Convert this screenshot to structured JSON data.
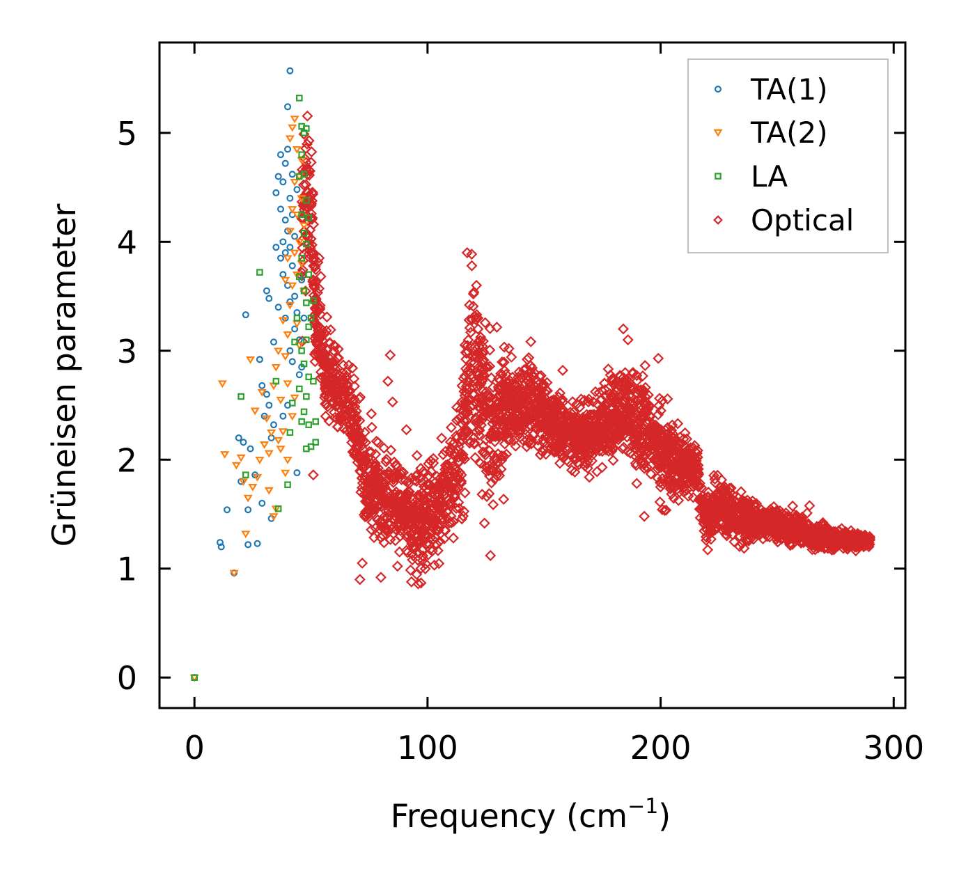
{
  "chart_data": {
    "type": "scatter",
    "title": "",
    "xlabel": "Frequency (cm",
    "xlabel_sup": "−1",
    "xlabel_close": ")",
    "ylabel": "Grüneisen parameter",
    "xlim": [
      -15,
      305
    ],
    "ylim": [
      -0.28,
      5.83
    ],
    "xticks": [
      0,
      100,
      200,
      300
    ],
    "yticks": [
      0,
      1,
      2,
      3,
      4,
      5
    ],
    "grid": false,
    "legend_position": "top-right",
    "series": [
      {
        "name": "TA(1)",
        "marker": "circle",
        "color": "#1f77b4",
        "points": [
          [
            0,
            0
          ],
          [
            11,
            1.24
          ],
          [
            11.5,
            1.2
          ],
          [
            14,
            1.54
          ],
          [
            17,
            0.96
          ],
          [
            19,
            2.2
          ],
          [
            20,
            1.8
          ],
          [
            21,
            2.16
          ],
          [
            22,
            3.33
          ],
          [
            23,
            1.22
          ],
          [
            23,
            1.54
          ],
          [
            24,
            2.1
          ],
          [
            26,
            1.86
          ],
          [
            27,
            1.23
          ],
          [
            28,
            2.92
          ],
          [
            29,
            1.6
          ],
          [
            29,
            2.68
          ],
          [
            30,
            2.4
          ],
          [
            31,
            2.6
          ],
          [
            31,
            3.55
          ],
          [
            32,
            2.5
          ],
          [
            32,
            3.48
          ],
          [
            33,
            1.46
          ],
          [
            33,
            2.2
          ],
          [
            34,
            2.32
          ],
          [
            34,
            3.08
          ],
          [
            35,
            3.95
          ],
          [
            35,
            4.45
          ],
          [
            36,
            3.4
          ],
          [
            36,
            4.6
          ],
          [
            37,
            3.85
          ],
          [
            37,
            4.3
          ],
          [
            37,
            4.8
          ],
          [
            38,
            2.4
          ],
          [
            38,
            3.7
          ],
          [
            38,
            4.0
          ],
          [
            38,
            4.55
          ],
          [
            39,
            3.3
          ],
          [
            39,
            3.9
          ],
          [
            39,
            4.2
          ],
          [
            39,
            4.72
          ],
          [
            40,
            2.5
          ],
          [
            40,
            3.6
          ],
          [
            40,
            4.1
          ],
          [
            40,
            4.85
          ],
          [
            40,
            5.24
          ],
          [
            41,
            3.0
          ],
          [
            41,
            3.45
          ],
          [
            41,
            3.95
          ],
          [
            41,
            4.4
          ],
          [
            41,
            5.57
          ],
          [
            42,
            2.9
          ],
          [
            42,
            3.78
          ],
          [
            42,
            4.25
          ],
          [
            42,
            4.62
          ],
          [
            43,
            3.2
          ],
          [
            43,
            3.5
          ],
          [
            43,
            4.05
          ],
          [
            44,
            1.88
          ],
          [
            44,
            3.35
          ],
          [
            44,
            4.48
          ],
          [
            45,
            2.78
          ],
          [
            45,
            3.1
          ],
          [
            46,
            2.85
          ],
          [
            46,
            3.65
          ],
          [
            47,
            3.3
          ]
        ]
      },
      {
        "name": "TA(2)",
        "marker": "triangle-down",
        "color": "#ff7f0e",
        "points": [
          [
            0,
            0
          ],
          [
            12,
            2.7
          ],
          [
            13,
            2.05
          ],
          [
            17,
            0.96
          ],
          [
            18,
            1.95
          ],
          [
            20,
            2.02
          ],
          [
            21,
            1.8
          ],
          [
            22,
            1.32
          ],
          [
            23,
            1.65
          ],
          [
            24,
            2.92
          ],
          [
            25,
            1.75
          ],
          [
            26,
            2.45
          ],
          [
            27,
            1.84
          ],
          [
            28,
            2.0
          ],
          [
            29,
            2.62
          ],
          [
            30,
            2.14
          ],
          [
            31,
            2.38
          ],
          [
            32,
            1.72
          ],
          [
            32,
            2.06
          ],
          [
            33,
            2.25
          ],
          [
            34,
            1.48
          ],
          [
            34,
            2.68
          ],
          [
            35,
            1.55
          ],
          [
            35,
            2.85
          ],
          [
            36,
            2.18
          ],
          [
            36,
            3.0
          ],
          [
            37,
            2.1
          ],
          [
            37,
            2.55
          ],
          [
            38,
            2.26
          ],
          [
            38,
            3.28
          ],
          [
            39,
            1.88
          ],
          [
            39,
            2.95
          ],
          [
            39,
            3.65
          ],
          [
            40,
            2.0
          ],
          [
            40,
            2.7
          ],
          [
            40,
            3.15
          ],
          [
            40,
            3.85
          ],
          [
            41,
            3.42
          ],
          [
            41,
            4.1
          ],
          [
            41,
            4.95
          ],
          [
            42,
            2.4
          ],
          [
            42,
            3.6
          ],
          [
            42,
            4.3
          ],
          [
            42,
            5.05
          ],
          [
            43,
            2.57
          ],
          [
            43,
            3.9
          ],
          [
            43,
            4.55
          ],
          [
            43,
            5.13
          ],
          [
            44,
            3.25
          ],
          [
            44,
            3.7
          ],
          [
            44,
            4.25
          ],
          [
            44,
            4.85
          ],
          [
            45,
            3.05
          ],
          [
            45,
            4.0
          ],
          [
            45,
            4.6
          ],
          [
            46,
            3.8
          ],
          [
            46,
            4.4
          ],
          [
            46,
            4.75
          ],
          [
            47,
            3.55
          ],
          [
            47,
            4.15
          ]
        ]
      },
      {
        "name": "LA",
        "marker": "square",
        "color": "#2ca02c",
        "points": [
          [
            0,
            0
          ],
          [
            20,
            2.58
          ],
          [
            22,
            1.86
          ],
          [
            28,
            3.72
          ],
          [
            35,
            2.72
          ],
          [
            36,
            1.55
          ],
          [
            40,
            1.77
          ],
          [
            41,
            2.25
          ],
          [
            42,
            2.52
          ],
          [
            43,
            3.08
          ],
          [
            44,
            3.3
          ],
          [
            45,
            2.65
          ],
          [
            45,
            3.68
          ],
          [
            45,
            4.6
          ],
          [
            45,
            5.32
          ],
          [
            46,
            2.35
          ],
          [
            46,
            3.0
          ],
          [
            46,
            3.85
          ],
          [
            46,
            4.25
          ],
          [
            46,
            4.8
          ],
          [
            46,
            5.06
          ],
          [
            47,
            2.44
          ],
          [
            47,
            2.88
          ],
          [
            47,
            3.55
          ],
          [
            47,
            4.08
          ],
          [
            47,
            4.62
          ],
          [
            47,
            5.0
          ],
          [
            48,
            2.1
          ],
          [
            48,
            2.58
          ],
          [
            48,
            3.1
          ],
          [
            48,
            3.44
          ],
          [
            48,
            3.98
          ],
          [
            48,
            4.38
          ],
          [
            48,
            5.04
          ],
          [
            49,
            2.32
          ],
          [
            49,
            2.76
          ],
          [
            49,
            3.22
          ],
          [
            49,
            3.7
          ],
          [
            49,
            4.22
          ],
          [
            50,
            2.12
          ],
          [
            50,
            3.3
          ],
          [
            51,
            2.72
          ],
          [
            51,
            3.46
          ],
          [
            52,
            2.16
          ],
          [
            52,
            2.35
          ]
        ]
      },
      {
        "name": "Optical",
        "marker": "diamond",
        "color": "#d62728",
        "generator": {
          "anchors": [
            [
              46,
              3.9
            ],
            [
              48,
              4.6
            ],
            [
              50,
              4.2
            ],
            [
              52,
              3.3
            ],
            [
              56,
              2.8
            ],
            [
              60,
              2.65
            ],
            [
              66,
              2.5
            ],
            [
              70,
              2.2
            ],
            [
              74,
              1.8
            ],
            [
              80,
              1.65
            ],
            [
              85,
              1.6
            ],
            [
              90,
              1.5
            ],
            [
              95,
              1.45
            ],
            [
              100,
              1.55
            ],
            [
              105,
              1.6
            ],
            [
              110,
              1.75
            ],
            [
              115,
              2.0
            ],
            [
              118,
              2.9
            ],
            [
              122,
              2.85
            ],
            [
              125,
              2.4
            ],
            [
              128,
              2.2
            ],
            [
              132,
              2.45
            ],
            [
              136,
              2.45
            ],
            [
              140,
              2.5
            ],
            [
              145,
              2.5
            ],
            [
              150,
              2.4
            ],
            [
              155,
              2.3
            ],
            [
              160,
              2.25
            ],
            [
              165,
              2.2
            ],
            [
              170,
              2.2
            ],
            [
              175,
              2.3
            ],
            [
              180,
              2.38
            ],
            [
              185,
              2.48
            ],
            [
              190,
              2.3
            ],
            [
              195,
              2.25
            ],
            [
              200,
              2.1
            ],
            [
              205,
              2.0
            ],
            [
              210,
              1.95
            ],
            [
              216,
              1.9
            ],
            [
              218,
              1.5
            ],
            [
              222,
              1.5
            ],
            [
              226,
              1.6
            ],
            [
              230,
              1.55
            ],
            [
              235,
              1.45
            ],
            [
              240,
              1.42
            ],
            [
              245,
              1.42
            ],
            [
              250,
              1.4
            ],
            [
              255,
              1.38
            ],
            [
              260,
              1.36
            ],
            [
              265,
              1.3
            ],
            [
              270,
              1.28
            ],
            [
              275,
              1.27
            ],
            [
              280,
              1.26
            ],
            [
              285,
              1.25
            ],
            [
              290,
              1.25
            ]
          ],
          "spread_anchors": [
            [
              46,
              0.9
            ],
            [
              52,
              0.6
            ],
            [
              60,
              0.35
            ],
            [
              70,
              0.45
            ],
            [
              80,
              0.45
            ],
            [
              95,
              0.5
            ],
            [
              110,
              0.45
            ],
            [
              118,
              0.9
            ],
            [
              125,
              0.8
            ],
            [
              135,
              0.45
            ],
            [
              150,
              0.35
            ],
            [
              165,
              0.3
            ],
            [
              175,
              0.35
            ],
            [
              185,
              0.5
            ],
            [
              200,
              0.45
            ],
            [
              215,
              0.2
            ],
            [
              218,
              0.25
            ],
            [
              230,
              0.25
            ],
            [
              245,
              0.15
            ],
            [
              260,
              0.15
            ],
            [
              275,
              0.1
            ],
            [
              290,
              0.05
            ]
          ],
          "count": 3600,
          "x_range": [
            46,
            290
          ]
        },
        "outliers": [
          [
            71,
            0.9
          ],
          [
            72,
            1.05
          ],
          [
            80,
            0.92
          ],
          [
            84,
            2.96
          ],
          [
            83,
            2.72
          ],
          [
            85,
            2.53
          ],
          [
            96,
            0.86
          ],
          [
            117,
            3.9
          ],
          [
            119,
            3.78
          ],
          [
            121,
            3.6
          ],
          [
            127,
            1.12
          ],
          [
            140,
            2.78
          ],
          [
            158,
            2.82
          ],
          [
            184,
            3.2
          ],
          [
            186,
            3.1
          ],
          [
            193,
            1.48
          ],
          [
            199,
            2.93
          ],
          [
            212,
            2.1
          ],
          [
            51,
            1.86
          ],
          [
            60,
            3.05
          ]
        ]
      }
    ]
  }
}
